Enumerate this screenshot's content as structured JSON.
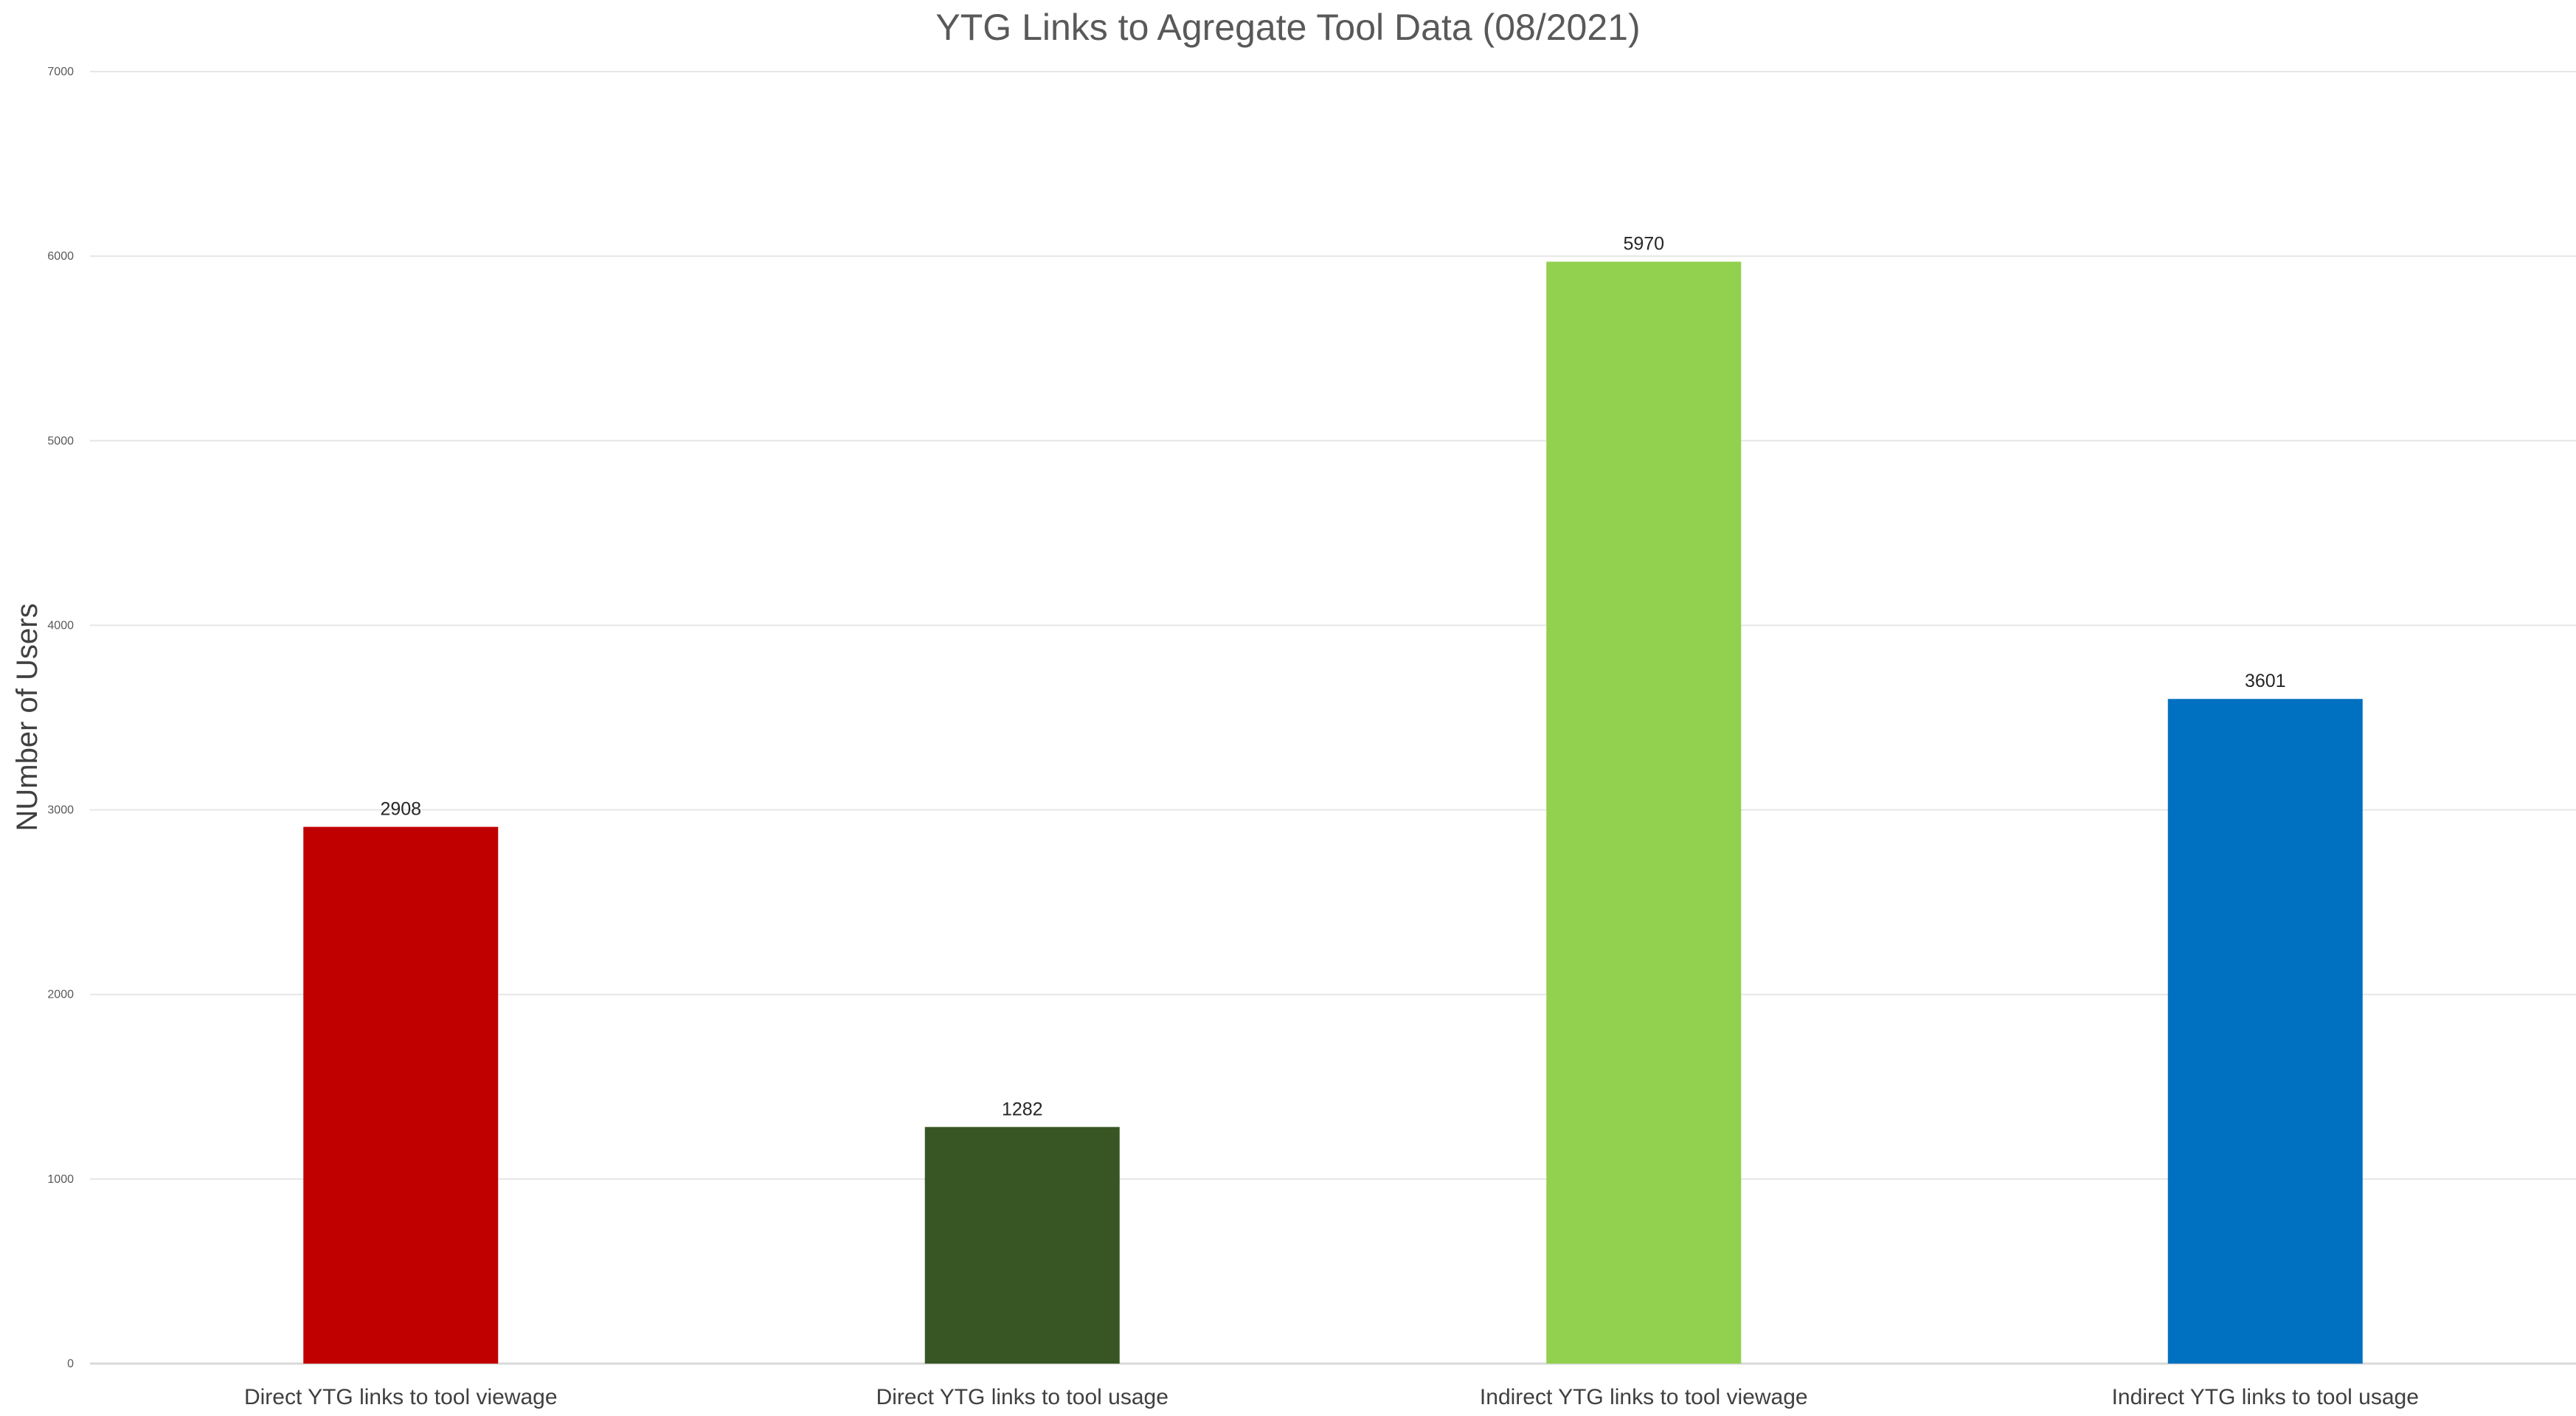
{
  "chart_data": {
    "type": "bar",
    "title": "YTG Links to Agregate Tool Data  (08/2021)",
    "xlabel": "",
    "ylabel": "NUmber of Users",
    "categories": [
      "Direct YTG links to tool viewage",
      "Direct YTG links to tool usage",
      "Indirect YTG links to tool viewage",
      "Indirect YTG links to tool usage"
    ],
    "values": [
      2908,
      1282,
      5970,
      3601
    ],
    "bar_colors": [
      "#c00000",
      "#375623",
      "#92d050",
      "#0070c0"
    ],
    "ylim": [
      0,
      7000
    ],
    "yticks": [
      0,
      1000,
      2000,
      3000,
      4000,
      5000,
      6000,
      7000
    ],
    "grid": true,
    "data_labels": true,
    "legend": "none"
  }
}
